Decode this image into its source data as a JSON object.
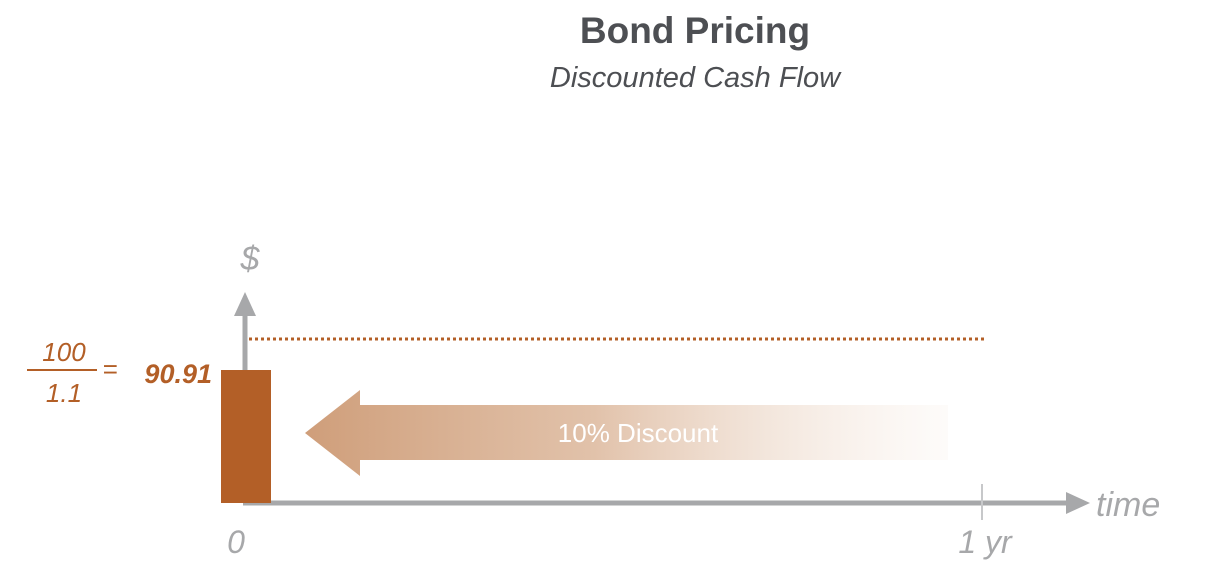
{
  "header": {
    "title": "Bond Pricing",
    "subtitle": "Discounted Cash Flow"
  },
  "axes": {
    "y_label": "$",
    "x_label": "time",
    "x_tick_start": "0",
    "x_tick_end": "1 yr"
  },
  "formula": {
    "numerator": "100",
    "denominator": "1.1",
    "equals": "=",
    "result": "90.91"
  },
  "discount_arrow": {
    "label": "10% Discount"
  },
  "colors": {
    "accent": "#b35f27",
    "axis": "#a7a8aa",
    "text": "#4d4f53"
  }
}
